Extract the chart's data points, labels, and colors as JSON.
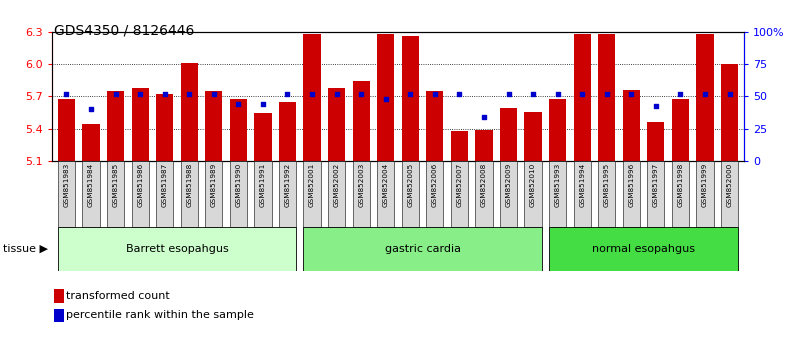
{
  "title": "GDS4350 / 8126446",
  "samples": [
    "GSM851983",
    "GSM851984",
    "GSM851985",
    "GSM851986",
    "GSM851987",
    "GSM851988",
    "GSM851989",
    "GSM851990",
    "GSM851991",
    "GSM851992",
    "GSM852001",
    "GSM852002",
    "GSM852003",
    "GSM852004",
    "GSM852005",
    "GSM852006",
    "GSM852007",
    "GSM852008",
    "GSM852009",
    "GSM852010",
    "GSM851993",
    "GSM851994",
    "GSM851995",
    "GSM851996",
    "GSM851997",
    "GSM851998",
    "GSM851999",
    "GSM852000"
  ],
  "red_values": [
    5.68,
    5.44,
    5.75,
    5.78,
    5.72,
    6.01,
    5.75,
    5.68,
    5.55,
    5.65,
    6.28,
    5.78,
    5.84,
    6.28,
    6.26,
    5.75,
    5.38,
    5.39,
    5.59,
    5.56,
    5.68,
    6.28,
    6.28,
    5.76,
    5.46,
    5.68,
    6.28,
    6.0
  ],
  "blue_values": [
    0.52,
    0.4,
    0.52,
    0.52,
    0.52,
    0.52,
    0.52,
    0.44,
    0.44,
    0.52,
    0.52,
    0.52,
    0.52,
    0.48,
    0.52,
    0.52,
    0.52,
    0.34,
    0.52,
    0.52,
    0.52,
    0.52,
    0.52,
    0.52,
    0.43,
    0.52,
    0.52,
    0.52
  ],
  "groups": [
    {
      "label": "Barrett esopahgus",
      "start": 0,
      "end": 10,
      "color": "#ccffcc"
    },
    {
      "label": "gastric cardia",
      "start": 10,
      "end": 20,
      "color": "#88ee88"
    },
    {
      "label": "normal esopahgus",
      "start": 20,
      "end": 28,
      "color": "#44dd44"
    }
  ],
  "ymin": 5.1,
  "ymax": 6.3,
  "yticks": [
    5.1,
    5.4,
    5.7,
    6.0,
    6.3
  ],
  "right_yticks": [
    0.0,
    0.25,
    0.5,
    0.75,
    1.0
  ],
  "right_yticklabels": [
    "0",
    "25",
    "50",
    "75",
    "100%"
  ],
  "red_color": "#cc0000",
  "blue_color": "#0000cc",
  "bar_width": 0.7,
  "base_value": 5.1
}
